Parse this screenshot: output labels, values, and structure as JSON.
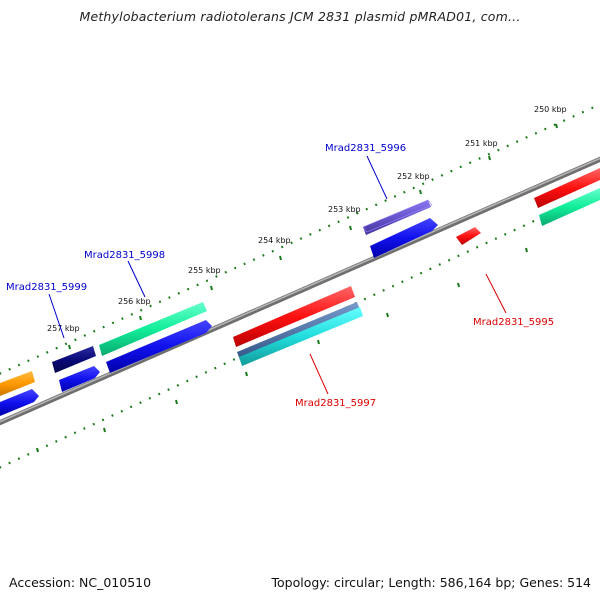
{
  "title": "Methylobacterium radiotolerans JCM 2831 plasmid pMRAD01, com...",
  "footer": {
    "accession": "Accession: NC_010510",
    "info": "Topology: circular; Length: 586,164 bp; Genes: 514"
  },
  "ticks": [
    "250 kbp",
    "251 kbp",
    "252 kbp",
    "253 kbp",
    "254 kbp",
    "255 kbp",
    "256 kbp",
    "257 kbp"
  ],
  "genes": [
    "Mrad2831_5995",
    "Mrad2831_5996",
    "Mrad2831_5997",
    "Mrad2831_5998",
    "Mrad2831_5999"
  ],
  "colors": {
    "backbone": "#8a8a8a",
    "tick_dots": "#1a7a1a",
    "forward_label": "#0000cc",
    "reverse_label": "#dd0000",
    "red": "#ff1111",
    "green": "#11ee99",
    "blue": "#1111ee",
    "navy": "#0a0a7a",
    "purple": "#6655cc",
    "orange": "#ff9900",
    "steel": "#5577aa",
    "cyan": "#22dddd"
  }
}
